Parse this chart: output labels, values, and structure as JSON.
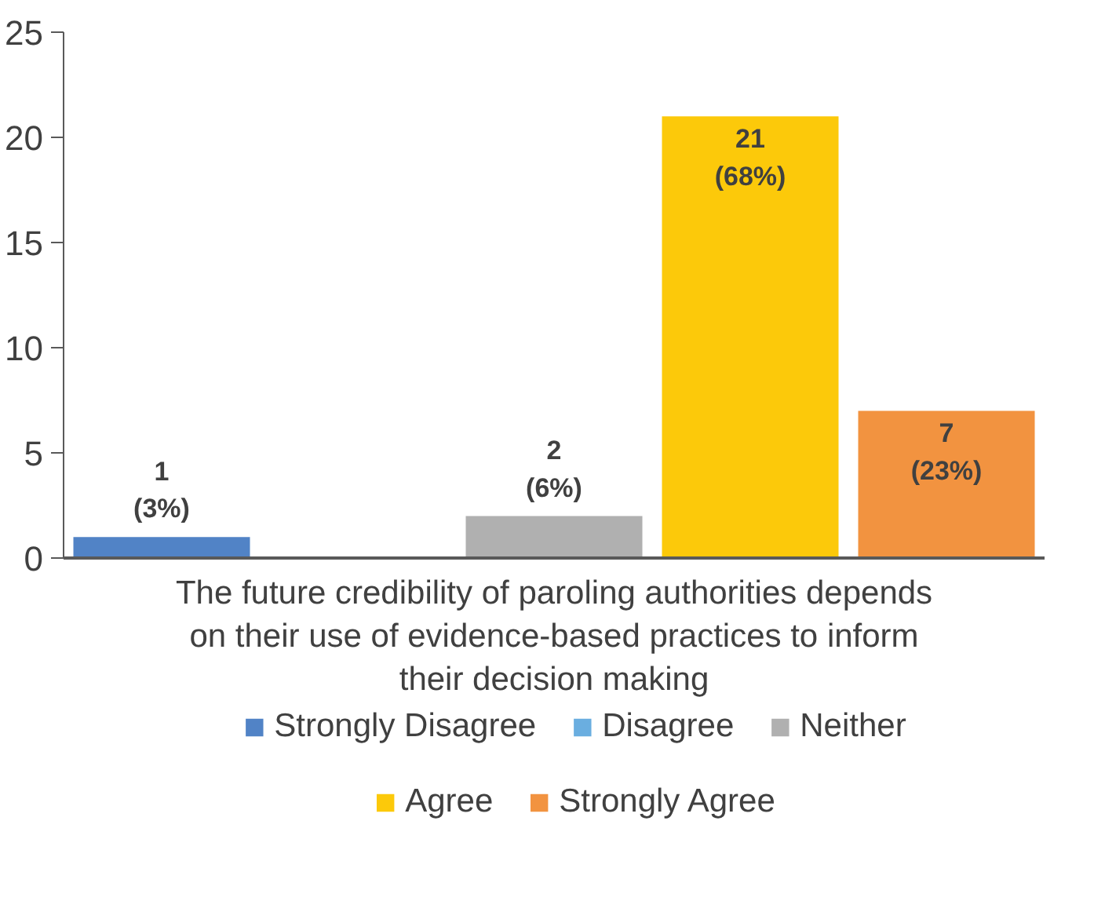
{
  "chart_data": {
    "type": "bar",
    "categories": [
      "The future credibility of paroling authorities depends on their use of evidence-based practices to inform their decision making"
    ],
    "series": [
      {
        "name": "Strongly Disagree",
        "color": "#5183c6",
        "values": [
          1
        ],
        "value_labels": [
          "1\n(3%)"
        ]
      },
      {
        "name": "Disagree",
        "color": "#6aaee0",
        "values": [
          0
        ],
        "value_labels": [
          null
        ]
      },
      {
        "name": "Neither",
        "color": "#b0b0b0",
        "values": [
          2
        ],
        "value_labels": [
          "2\n(6%)"
        ]
      },
      {
        "name": "Agree",
        "color": "#fcc90a",
        "values": [
          21
        ],
        "value_labels": [
          "21\n(68%)"
        ]
      },
      {
        "name": "Strongly Agree",
        "color": "#f29340",
        "values": [
          7
        ],
        "value_labels": [
          "7\n(23%)"
        ]
      }
    ],
    "ylim": [
      0,
      25
    ],
    "yticks": [
      0,
      5,
      10,
      15,
      20,
      25
    ],
    "grid": false,
    "legend": "bottom"
  }
}
